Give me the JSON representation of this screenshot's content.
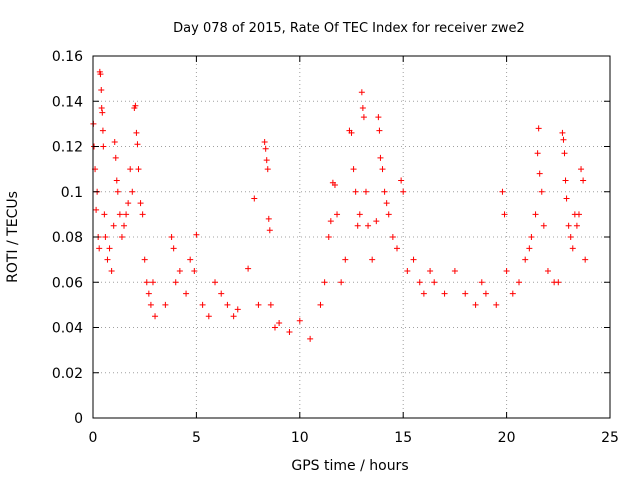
{
  "chart_data": {
    "type": "scatter",
    "title": "Day 078 of 2015, Rate Of TEC Index for receiver zwe2",
    "xlabel": "GPS time / hours",
    "ylabel": "ROTI / TECUs",
    "xlim": [
      0,
      25
    ],
    "ylim": [
      0,
      0.16
    ],
    "x_ticks": [
      0,
      5,
      10,
      15,
      20,
      25
    ],
    "x_tick_labels": [
      "0",
      "5",
      "10",
      "15",
      "20",
      "25"
    ],
    "y_ticks": [
      0,
      0.02,
      0.04,
      0.06,
      0.08,
      0.1,
      0.12,
      0.14,
      0.16
    ],
    "y_tick_labels": [
      "0",
      "0.02",
      "0.04",
      "0.06",
      "0.08",
      "0.1",
      "0.12",
      "0.14",
      "0.16"
    ],
    "grid": true,
    "marker": "plus",
    "series": [
      {
        "color": "#ff0000",
        "points": [
          [
            0.02,
            0.13
          ],
          [
            0.05,
            0.12
          ],
          [
            0.1,
            0.11
          ],
          [
            0.15,
            0.092
          ],
          [
            0.2,
            0.1
          ],
          [
            0.25,
            0.08
          ],
          [
            0.3,
            0.075
          ],
          [
            0.33,
            0.153
          ],
          [
            0.36,
            0.152
          ],
          [
            0.4,
            0.145
          ],
          [
            0.42,
            0.137
          ],
          [
            0.45,
            0.135
          ],
          [
            0.48,
            0.127
          ],
          [
            0.5,
            0.12
          ],
          [
            0.55,
            0.09
          ],
          [
            0.6,
            0.08
          ],
          [
            0.7,
            0.07
          ],
          [
            0.8,
            0.075
          ],
          [
            0.9,
            0.065
          ],
          [
            1.0,
            0.085
          ],
          [
            1.05,
            0.122
          ],
          [
            1.1,
            0.115
          ],
          [
            1.15,
            0.105
          ],
          [
            1.2,
            0.1
          ],
          [
            1.3,
            0.09
          ],
          [
            1.4,
            0.08
          ],
          [
            1.5,
            0.085
          ],
          [
            1.6,
            0.09
          ],
          [
            1.7,
            0.095
          ],
          [
            1.8,
            0.11
          ],
          [
            1.9,
            0.1
          ],
          [
            2.0,
            0.137
          ],
          [
            2.05,
            0.138
          ],
          [
            2.1,
            0.126
          ],
          [
            2.15,
            0.121
          ],
          [
            2.2,
            0.11
          ],
          [
            2.3,
            0.095
          ],
          [
            2.4,
            0.09
          ],
          [
            2.5,
            0.07
          ],
          [
            2.6,
            0.06
          ],
          [
            2.7,
            0.055
          ],
          [
            2.8,
            0.05
          ],
          [
            2.9,
            0.06
          ],
          [
            3.0,
            0.045
          ],
          [
            3.5,
            0.05
          ],
          [
            3.8,
            0.08
          ],
          [
            3.9,
            0.075
          ],
          [
            4.0,
            0.06
          ],
          [
            4.2,
            0.065
          ],
          [
            4.5,
            0.055
          ],
          [
            4.7,
            0.07
          ],
          [
            4.9,
            0.065
          ],
          [
            5.0,
            0.081
          ],
          [
            5.3,
            0.05
          ],
          [
            5.6,
            0.045
          ],
          [
            5.9,
            0.06
          ],
          [
            6.2,
            0.055
          ],
          [
            6.5,
            0.05
          ],
          [
            6.8,
            0.045
          ],
          [
            7.0,
            0.048
          ],
          [
            7.5,
            0.066
          ],
          [
            7.8,
            0.097
          ],
          [
            8.0,
            0.05
          ],
          [
            8.3,
            0.122
          ],
          [
            8.35,
            0.119
          ],
          [
            8.4,
            0.114
          ],
          [
            8.45,
            0.11
          ],
          [
            8.5,
            0.088
          ],
          [
            8.55,
            0.083
          ],
          [
            8.6,
            0.05
          ],
          [
            8.8,
            0.04
          ],
          [
            9.0,
            0.042
          ],
          [
            9.5,
            0.038
          ],
          [
            10.0,
            0.043
          ],
          [
            10.5,
            0.035
          ],
          [
            11.0,
            0.05
          ],
          [
            11.2,
            0.06
          ],
          [
            11.4,
            0.08
          ],
          [
            11.5,
            0.087
          ],
          [
            11.6,
            0.104
          ],
          [
            11.7,
            0.103
          ],
          [
            11.8,
            0.09
          ],
          [
            12.0,
            0.06
          ],
          [
            12.2,
            0.07
          ],
          [
            12.4,
            0.127
          ],
          [
            12.5,
            0.126
          ],
          [
            12.6,
            0.11
          ],
          [
            12.7,
            0.1
          ],
          [
            12.8,
            0.085
          ],
          [
            12.9,
            0.09
          ],
          [
            13.0,
            0.144
          ],
          [
            13.05,
            0.137
          ],
          [
            13.1,
            0.133
          ],
          [
            13.2,
            0.1
          ],
          [
            13.3,
            0.085
          ],
          [
            13.5,
            0.07
          ],
          [
            13.7,
            0.087
          ],
          [
            13.8,
            0.133
          ],
          [
            13.85,
            0.127
          ],
          [
            13.9,
            0.115
          ],
          [
            14.0,
            0.11
          ],
          [
            14.1,
            0.1
          ],
          [
            14.2,
            0.095
          ],
          [
            14.3,
            0.09
          ],
          [
            14.5,
            0.08
          ],
          [
            14.7,
            0.075
          ],
          [
            14.9,
            0.105
          ],
          [
            15.0,
            0.1
          ],
          [
            15.2,
            0.065
          ],
          [
            15.5,
            0.07
          ],
          [
            15.8,
            0.06
          ],
          [
            16.0,
            0.055
          ],
          [
            16.3,
            0.065
          ],
          [
            16.5,
            0.06
          ],
          [
            17.0,
            0.055
          ],
          [
            17.5,
            0.065
          ],
          [
            18.0,
            0.055
          ],
          [
            18.5,
            0.05
          ],
          [
            18.8,
            0.06
          ],
          [
            19.0,
            0.055
          ],
          [
            19.5,
            0.05
          ],
          [
            19.8,
            0.1
          ],
          [
            19.9,
            0.09
          ],
          [
            20.0,
            0.065
          ],
          [
            20.3,
            0.055
          ],
          [
            20.6,
            0.06
          ],
          [
            20.9,
            0.07
          ],
          [
            21.1,
            0.075
          ],
          [
            21.2,
            0.08
          ],
          [
            21.4,
            0.09
          ],
          [
            21.5,
            0.117
          ],
          [
            21.55,
            0.128
          ],
          [
            21.6,
            0.108
          ],
          [
            21.7,
            0.1
          ],
          [
            21.8,
            0.085
          ],
          [
            22.0,
            0.065
          ],
          [
            22.3,
            0.06
          ],
          [
            22.5,
            0.06
          ],
          [
            22.7,
            0.126
          ],
          [
            22.75,
            0.123
          ],
          [
            22.8,
            0.117
          ],
          [
            22.85,
            0.105
          ],
          [
            22.9,
            0.097
          ],
          [
            23.0,
            0.085
          ],
          [
            23.1,
            0.08
          ],
          [
            23.2,
            0.075
          ],
          [
            23.3,
            0.09
          ],
          [
            23.4,
            0.085
          ],
          [
            23.5,
            0.09
          ],
          [
            23.6,
            0.11
          ],
          [
            23.7,
            0.105
          ],
          [
            23.8,
            0.07
          ]
        ]
      }
    ]
  }
}
